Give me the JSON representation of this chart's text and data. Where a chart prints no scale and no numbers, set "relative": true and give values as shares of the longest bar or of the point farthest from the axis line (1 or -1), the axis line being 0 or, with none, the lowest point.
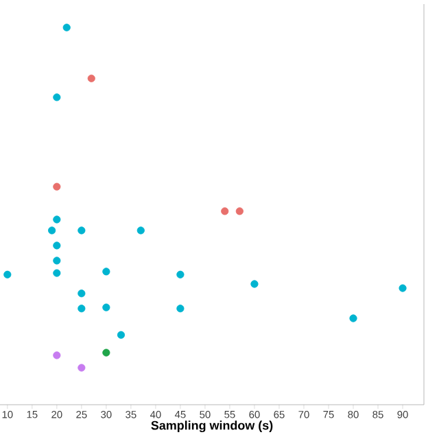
{
  "chart_data": {
    "type": "scatter",
    "relative": true,
    "xlabel": "Sampling window (s)",
    "xlim": [
      8.5,
      94.3
    ],
    "xticks": [
      10,
      15,
      20,
      25,
      30,
      35,
      40,
      45,
      50,
      55,
      60,
      65,
      70,
      75,
      80,
      85,
      90
    ],
    "series": [
      {
        "color": "#00b4d0",
        "x": [
          22,
          20,
          20,
          19,
          25,
          37,
          20,
          20,
          10,
          20,
          30,
          45,
          60,
          90,
          25,
          25,
          30,
          45,
          80,
          33
        ],
        "values": [
          1.0,
          0.815,
          0.491,
          0.462,
          0.462,
          0.462,
          0.422,
          0.382,
          0.345,
          0.349,
          0.353,
          0.345,
          0.32,
          0.309,
          0.295,
          0.255,
          0.258,
          0.255,
          0.229,
          0.185
        ]
      },
      {
        "color": "#e8706c",
        "x": [
          27,
          20,
          54,
          57
        ],
        "values": [
          0.865,
          0.578,
          0.513,
          0.513
        ]
      },
      {
        "color": "#1fa54a",
        "x": [
          30
        ],
        "values": [
          0.138
        ]
      },
      {
        "color": "#c77cf0",
        "x": [
          20,
          25
        ],
        "values": [
          0.131,
          0.098
        ]
      }
    ]
  }
}
